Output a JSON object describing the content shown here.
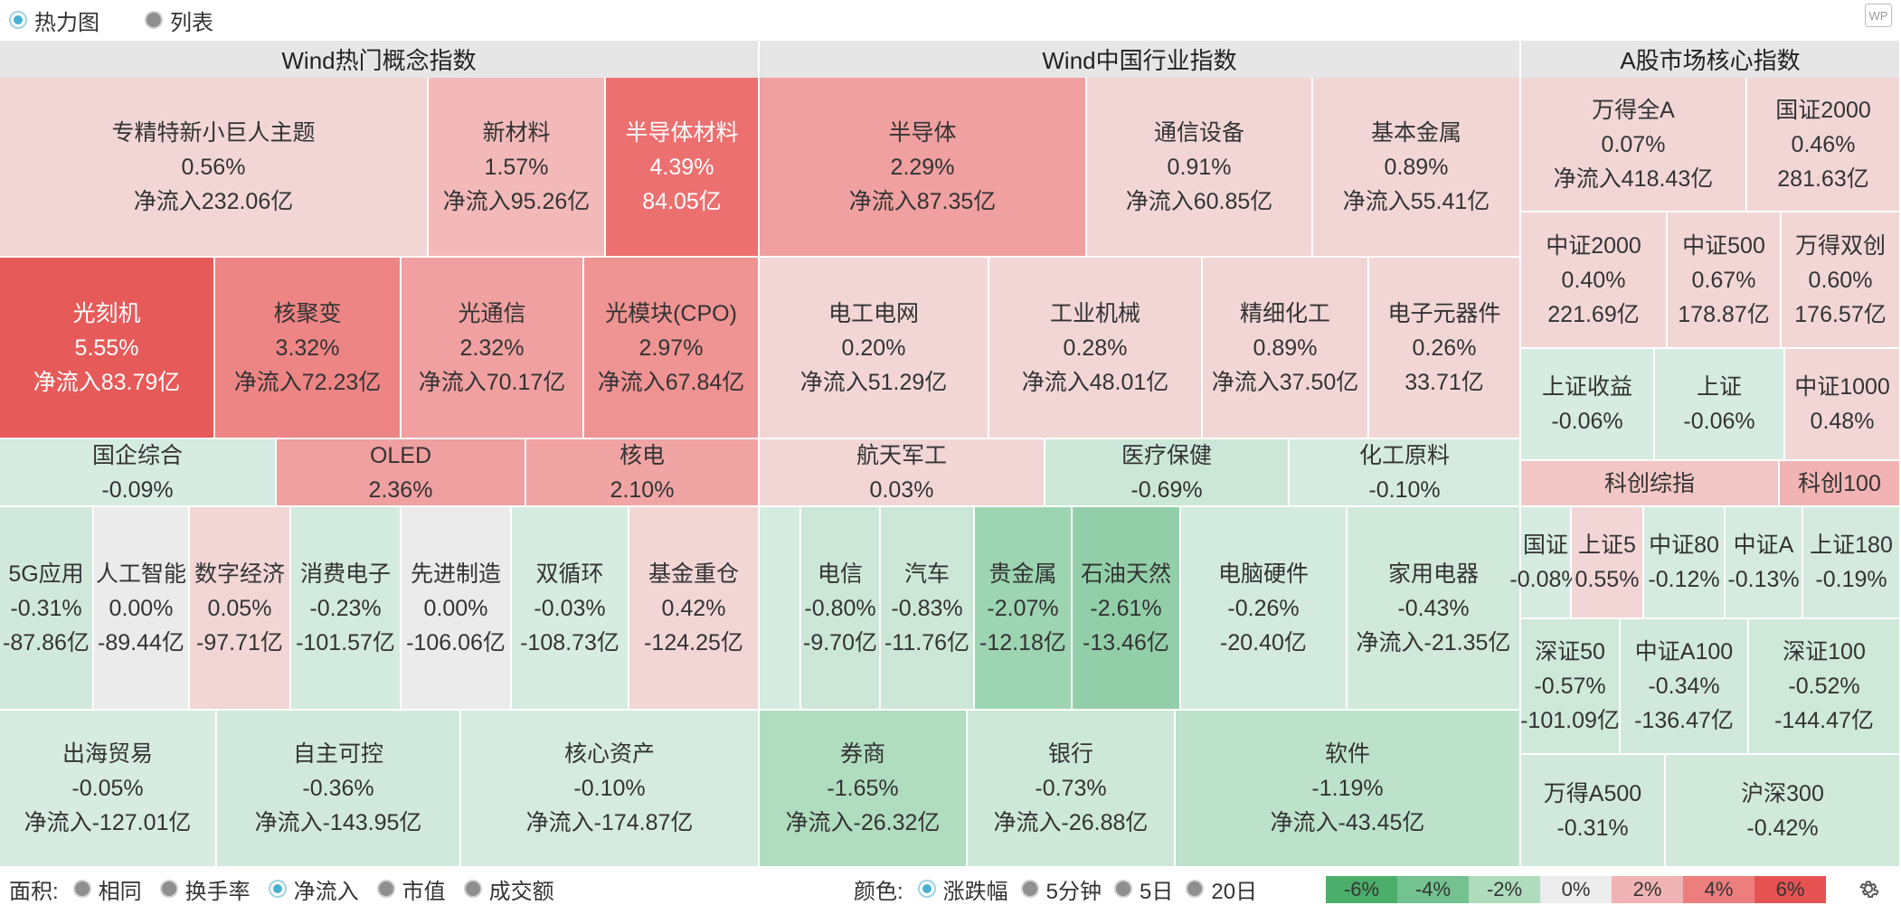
{
  "view_toggle": {
    "heatmap": "热力图",
    "list": "列表"
  },
  "sections": [
    {
      "title": "Wind热门概念指数"
    },
    {
      "title": "Wind中国行业指数"
    },
    {
      "title": "A股市场核心指数"
    }
  ],
  "tiles": [
    {
      "name": "专精特新小巨人主题",
      "pct": "0.56%",
      "flow": "净流入232.06亿",
      "color": "#f2d6d6"
    },
    {
      "name": "新材料",
      "pct": "1.57%",
      "flow": "净流入95.26亿",
      "color": "#f3b9b9"
    },
    {
      "name": "半导体材料",
      "pct": "4.39%",
      "flow": "84.05亿",
      "color": "#ec7070"
    },
    {
      "name": "光刻机",
      "pct": "5.55%",
      "flow": "净流入83.79亿",
      "color": "#e65a5a"
    },
    {
      "name": "核聚变",
      "pct": "3.32%",
      "flow": "净流入72.23亿",
      "color": "#ee8585"
    },
    {
      "name": "光通信",
      "pct": "2.32%",
      "flow": "净流入70.17亿",
      "color": "#f0a0a0"
    },
    {
      "name": "光模块(CPO)",
      "pct": "2.97%",
      "flow": "净流入67.84亿",
      "color": "#ef9393"
    },
    {
      "name": "国企综合",
      "pct": "-0.09%",
      "flow": "",
      "color": "#d6ebe1"
    },
    {
      "name": "OLED",
      "pct": "2.36%",
      "flow": "",
      "color": "#f0a0a0"
    },
    {
      "name": "核电",
      "pct": "2.10%",
      "flow": "",
      "color": "#f1a4a4"
    },
    {
      "name": "5G应用",
      "pct": "-0.31%",
      "flow": "-87.86亿",
      "color": "#d1e9dc"
    },
    {
      "name": "人工智能",
      "pct": "0.00%",
      "flow": "-89.44亿",
      "color": "#ebebeb"
    },
    {
      "name": "数字经济",
      "pct": "0.05%",
      "flow": "-97.71亿",
      "color": "#f2d6d6"
    },
    {
      "name": "消费电子",
      "pct": "-0.23%",
      "flow": "-101.57亿",
      "color": "#d3eade"
    },
    {
      "name": "先进制造",
      "pct": "0.00%",
      "flow": "-106.06亿",
      "color": "#ebebeb"
    },
    {
      "name": "双循环",
      "pct": "-0.03%",
      "flow": "-108.73亿",
      "color": "#d6ebe1"
    },
    {
      "name": "基金重仓",
      "pct": "0.42%",
      "flow": "-124.25亿",
      "color": "#f2d6d6"
    },
    {
      "name": "出海贸易",
      "pct": "-0.05%",
      "flow": "净流入-127.01亿",
      "color": "#d6ebe1"
    },
    {
      "name": "自主可控",
      "pct": "-0.36%",
      "flow": "净流入-143.95亿",
      "color": "#d1e9dc"
    },
    {
      "name": "核心资产",
      "pct": "-0.10%",
      "flow": "净流入-174.87亿",
      "color": "#d5ebe0"
    },
    {
      "name": "半导体",
      "pct": "2.29%",
      "flow": "净流入87.35亿",
      "color": "#f0a0a0"
    },
    {
      "name": "通信设备",
      "pct": "0.91%",
      "flow": "净流入60.85亿",
      "color": "#f2d6d6"
    },
    {
      "name": "基本金属",
      "pct": "0.89%",
      "flow": "净流入55.41亿",
      "color": "#f2d6d6"
    },
    {
      "name": "电工电网",
      "pct": "0.20%",
      "flow": "净流入51.29亿",
      "color": "#f2d6d6"
    },
    {
      "name": "工业机械",
      "pct": "0.28%",
      "flow": "净流入48.01亿",
      "color": "#f2d6d6"
    },
    {
      "name": "精细化工",
      "pct": "0.89%",
      "flow": "净流入37.50亿",
      "color": "#f2d6d6"
    },
    {
      "name": "电子元器件",
      "pct": "0.26%",
      "flow": "33.71亿",
      "color": "#f2d6d6"
    },
    {
      "name": "航天军工",
      "pct": "0.03%",
      "flow": "",
      "color": "#f2d6d6"
    },
    {
      "name": "医疗保健",
      "pct": "-0.69%",
      "flow": "",
      "color": "#cce7d7"
    },
    {
      "name": "化工原料",
      "pct": "-0.10%",
      "flow": "",
      "color": "#d5ebe0"
    },
    {
      "name": "",
      "pct": "",
      "flow": "",
      "color": "#d5ebe0"
    },
    {
      "name": "电信",
      "pct": "-0.80%",
      "flow": "-9.70亿",
      "color": "#cce7d7"
    },
    {
      "name": "汽车",
      "pct": "-0.83%",
      "flow": "-11.76亿",
      "color": "#cce7d7"
    },
    {
      "name": "贵金属",
      "pct": "-2.07%",
      "flow": "-12.18亿",
      "color": "#9dd4b2"
    },
    {
      "name": "石油天然",
      "pct": "-2.61%",
      "flow": "-13.46亿",
      "color": "#92cfa9"
    },
    {
      "name": "电脑硬件",
      "pct": "-0.26%",
      "flow": "-20.40亿",
      "color": "#d3eade"
    },
    {
      "name": "家用电器",
      "pct": "-0.43%",
      "flow": "净流入-21.35亿",
      "color": "#d0e9da"
    },
    {
      "name": "券商",
      "pct": "-1.65%",
      "flow": "净流入-26.32亿",
      "color": "#b0dcc0"
    },
    {
      "name": "银行",
      "pct": "-0.73%",
      "flow": "净流入-26.88亿",
      "color": "#cde8d8"
    },
    {
      "name": "软件",
      "pct": "-1.19%",
      "flow": "净流入-43.45亿",
      "color": "#bde2cb"
    },
    {
      "name": "万得全A",
      "pct": "0.07%",
      "flow": "净流入418.43亿",
      "color": "#f2d6d6"
    },
    {
      "name": "国证2000",
      "pct": "0.46%",
      "flow": "281.63亿",
      "color": "#f2d6d6"
    },
    {
      "name": "中证2000",
      "pct": "0.40%",
      "flow": "221.69亿",
      "color": "#f2d6d6"
    },
    {
      "name": "中证500",
      "pct": "0.67%",
      "flow": "178.87亿",
      "color": "#f2d6d6"
    },
    {
      "name": "万得双创",
      "pct": "0.60%",
      "flow": "176.57亿",
      "color": "#f2d6d6"
    },
    {
      "name": "上证收益",
      "pct": "-0.06%",
      "flow": "",
      "color": "#d6ebe1"
    },
    {
      "name": "上证",
      "pct": "-0.06%",
      "flow": "",
      "color": "#d6ebe1"
    },
    {
      "name": "中证1000",
      "pct": "0.48%",
      "flow": "",
      "color": "#f2d6d6"
    },
    {
      "name": "科创综指",
      "pct": "",
      "flow": "",
      "color": "#f3c6c6"
    },
    {
      "name": "科创100",
      "pct": "",
      "flow": "",
      "color": "#f1b3b3"
    },
    {
      "name": "国证",
      "pct": "-0.08%",
      "flow": "",
      "color": "#d6ebe1"
    },
    {
      "name": "上证5",
      "pct": "0.55%",
      "flow": "",
      "color": "#f2d6d6"
    },
    {
      "name": "中证80",
      "pct": "-0.12%",
      "flow": "",
      "color": "#d5ebe0"
    },
    {
      "name": "中证A",
      "pct": "-0.13%",
      "flow": "",
      "color": "#d5ebe0"
    },
    {
      "name": "上证180",
      "pct": "-0.19%",
      "flow": "",
      "color": "#d4eadf"
    },
    {
      "name": "深证50",
      "pct": "-0.57%",
      "flow": "-101.09亿",
      "color": "#cee8d9"
    },
    {
      "name": "中证A100",
      "pct": "-0.34%",
      "flow": "-136.47亿",
      "color": "#d1e9dc"
    },
    {
      "name": "深证100",
      "pct": "-0.52%",
      "flow": "-144.47亿",
      "color": "#cee8d9"
    },
    {
      "name": "万得A500",
      "pct": "-0.31%",
      "flow": "",
      "color": "#d1e9dc"
    },
    {
      "name": "沪深300",
      "pct": "-0.42%",
      "flow": "",
      "color": "#d0e9da"
    }
  ],
  "bottom": {
    "area_label": "面积:",
    "area_options": [
      "相同",
      "换手率",
      "净流入",
      "市值",
      "成交额"
    ],
    "color_label": "颜色:",
    "color_options": [
      "涨跌幅",
      "5分钟",
      "5日",
      "20日"
    ],
    "legend": [
      {
        "label": "-6%",
        "color": "#4cae6b"
      },
      {
        "label": "-4%",
        "color": "#74c28f"
      },
      {
        "label": "-2%",
        "color": "#aedcbd"
      },
      {
        "label": "0%",
        "color": "#ececec"
      },
      {
        "label": "2%",
        "color": "#f1b3b3"
      },
      {
        "label": "4%",
        "color": "#ec7e7e"
      },
      {
        "label": "6%",
        "color": "#e65252"
      }
    ]
  },
  "icons": {
    "watermark": "wp-logo-icon",
    "settings": "gear-icon"
  },
  "watermark_text": "WP"
}
